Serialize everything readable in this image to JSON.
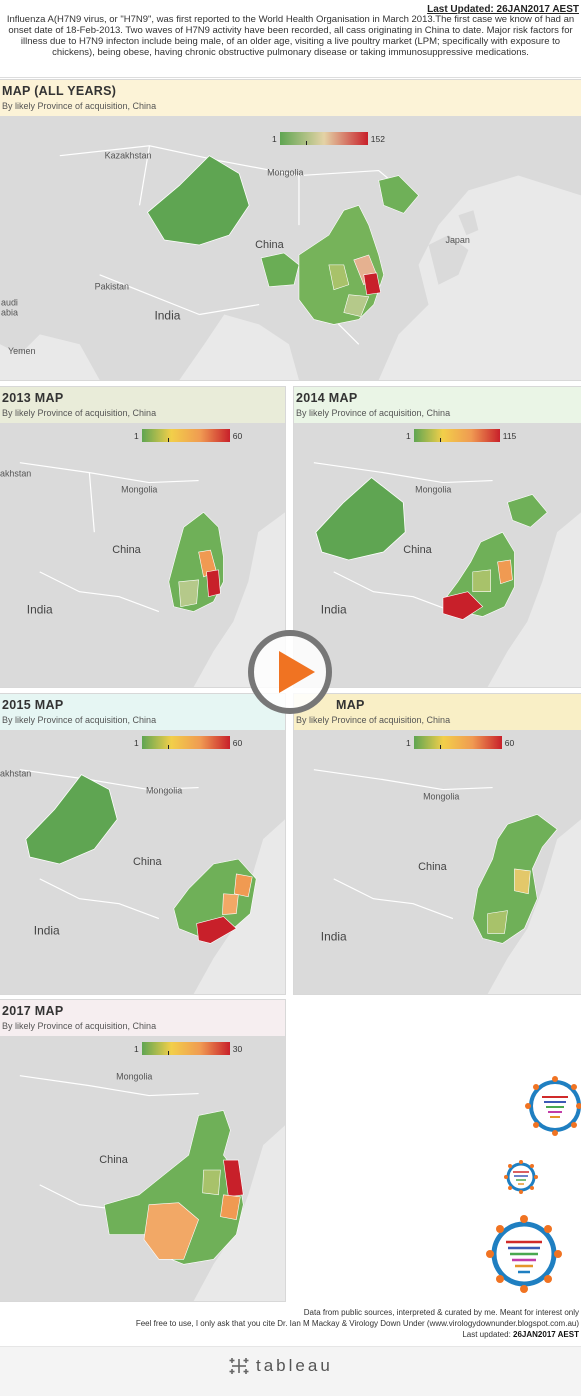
{
  "header": {
    "last_updated": "Last Updated: 26JAN2017 AEST",
    "intro": "Influenza A(H7N9 virus, or \"H7N9\", was first reported to the World Health Organisation in March 2013.The first case we know of had an onset date of 18-Feb-2013. Two waves of H7N9 activity have been recorded, all cass originating in China to date. Major risk factors for illness due to H7N9 infecton include being male, of an older age, visiting a live poultry market (LPM; specifically with exposure to chickens), being obese, having chronic obstructive pulmonary disease or taking immunosuppressive medications."
  },
  "panels": {
    "all": {
      "title": "MAP (ALL YEARS)",
      "subtitle": "By likely Province of acquisition, China",
      "legend_min": "1",
      "legend_max": "152",
      "header_color": "#fcf3d7"
    },
    "y2013": {
      "title": "2013 MAP",
      "subtitle": "By likely Province of acquisition, China",
      "legend_min": "1",
      "legend_max": "60",
      "header_color": "#e9ecd9"
    },
    "y2014": {
      "title": "2014 MAP",
      "subtitle": "By likely Province of acquisition, China",
      "legend_min": "1",
      "legend_max": "115",
      "header_color": "#eaf5e6"
    },
    "y2015": {
      "title": "2015 MAP",
      "subtitle": "By likely Province of acquisition, China",
      "legend_min": "1",
      "legend_max": "60",
      "header_color": "#e6f6f3"
    },
    "y2016": {
      "title": "MAP",
      "subtitle": "By likely Province of acquisition, China",
      "legend_min": "1",
      "legend_max": "60",
      "header_color": "#f9efc6"
    },
    "y2017": {
      "title": "2017 MAP",
      "subtitle": "By likely Province of acquisition, China",
      "legend_min": "1",
      "legend_max": "30",
      "header_color": "#f6eef0"
    }
  },
  "map_labels": {
    "kazakhstan": "Kazakhstan",
    "kazakhstan_partial": "akhstan",
    "mongolia": "Mongolia",
    "china": "China",
    "india": "India",
    "japan": "Japan",
    "pakistan": "Pakistan",
    "saudi": "audi",
    "arabia": "abia",
    "yemen": "Yemen"
  },
  "footer": {
    "line1": "Data from public sources, interpreted & curated by me. Meant for interest only",
    "line2": "Feel free to use, I only ask that you cite Dr. Ian M Mackay & Virology Down Under (www.virologydownunder.blogspot.com.au)",
    "line3_prefix": "Last updated: ",
    "line3_value": "26JAN2017 AEST"
  },
  "branding": {
    "tableau": "tableau"
  },
  "colors": {
    "low": "#5fa552",
    "mid": "#a8c26a",
    "orange": "#f09a52",
    "high": "#c8202a",
    "land": "#d7d7d7",
    "water": "#e9e9e9",
    "play_orange": "#f07322"
  },
  "icons": {
    "play": "play-icon",
    "virus": "virus-icon",
    "tableau_logo": "tableau-logo-icon"
  }
}
